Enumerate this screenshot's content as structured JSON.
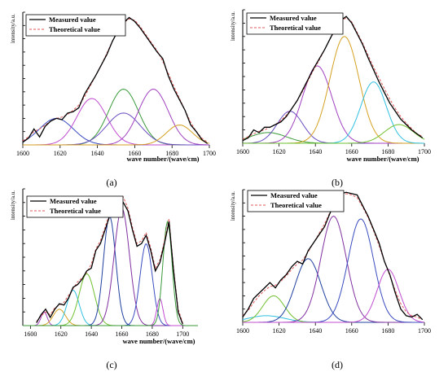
{
  "colors": {
    "measured": "#000000",
    "theoretical": "#e05a5a",
    "axis": "#000000",
    "peak_palette": [
      "#3b4cc0",
      "#c04cd0",
      "#3a9a3a",
      "#6a4cc0",
      "#a040c0",
      "#d4a020",
      "#30c0e0",
      "#70c030",
      "#2040a0",
      "#8030a0"
    ]
  },
  "chart_data": [
    {
      "panel_label": "(a)",
      "type": "line",
      "xlabel": "wave number/(wave/cm)",
      "ylabel": "intensity/a.u.",
      "xticks": [
        "1600",
        "1620",
        "1640",
        "1660",
        "1680",
        "1700"
      ],
      "xlim": [
        1600,
        1700
      ],
      "ylim": [
        0,
        1.0
      ],
      "legend": {
        "position": "top-left",
        "entries": [
          "Measured value",
          "Theoretical value"
        ]
      },
      "measured": {
        "x": [
          1600,
          1603,
          1606,
          1609,
          1612,
          1615,
          1618,
          1621,
          1624,
          1627,
          1630,
          1633,
          1636,
          1639,
          1642,
          1645,
          1648,
          1651,
          1654,
          1657,
          1660,
          1663,
          1666,
          1669,
          1672,
          1675,
          1678,
          1681,
          1684,
          1687,
          1690,
          1693,
          1696,
          1699
        ],
        "y": [
          0.02,
          0.05,
          0.12,
          0.06,
          0.14,
          0.18,
          0.2,
          0.19,
          0.24,
          0.25,
          0.28,
          0.38,
          0.45,
          0.52,
          0.6,
          0.68,
          0.78,
          0.86,
          0.92,
          0.96,
          0.93,
          0.88,
          0.82,
          0.76,
          0.7,
          0.65,
          0.52,
          0.42,
          0.34,
          0.26,
          0.15,
          0.1,
          0.04,
          0.01
        ]
      },
      "theoretical": {
        "x": [
          1600,
          1603,
          1606,
          1609,
          1612,
          1615,
          1618,
          1621,
          1624,
          1627,
          1630,
          1633,
          1636,
          1639,
          1642,
          1645,
          1648,
          1651,
          1654,
          1657,
          1660,
          1663,
          1666,
          1669,
          1672,
          1675,
          1678,
          1681,
          1684,
          1687,
          1690,
          1693,
          1696,
          1699
        ],
        "y": [
          0.03,
          0.06,
          0.1,
          0.12,
          0.15,
          0.18,
          0.2,
          0.21,
          0.23,
          0.26,
          0.3,
          0.36,
          0.44,
          0.52,
          0.6,
          0.69,
          0.78,
          0.86,
          0.92,
          0.95,
          0.94,
          0.89,
          0.83,
          0.77,
          0.71,
          0.63,
          0.54,
          0.44,
          0.35,
          0.26,
          0.17,
          0.1,
          0.05,
          0.02
        ]
      },
      "peaks": [
        {
          "center": 1618,
          "height": 0.2,
          "width": 9
        },
        {
          "center": 1637,
          "height": 0.35,
          "width": 8
        },
        {
          "center": 1654,
          "height": 0.42,
          "width": 8
        },
        {
          "center": 1654,
          "height": 0.24,
          "width": 9
        },
        {
          "center": 1670,
          "height": 0.42,
          "width": 8
        },
        {
          "center": 1684,
          "height": 0.15,
          "width": 7
        }
      ]
    },
    {
      "panel_label": "(b)",
      "type": "line",
      "xlabel": "wave number/(wave/cm)",
      "ylabel": "intensity/a.u.",
      "xticks": [
        "1600",
        "1620",
        "1640",
        "1660",
        "1680",
        "1700"
      ],
      "xlim": [
        1600,
        1700
      ],
      "ylim": [
        0,
        1.0
      ],
      "legend": {
        "position": "top-left",
        "entries": [
          "Measured value",
          "Theoretical value"
        ]
      },
      "measured": {
        "x": [
          1600,
          1603,
          1606,
          1609,
          1612,
          1615,
          1618,
          1621,
          1624,
          1627,
          1630,
          1633,
          1636,
          1639,
          1642,
          1645,
          1648,
          1651,
          1654,
          1657,
          1660,
          1663,
          1666,
          1669,
          1672,
          1675,
          1678,
          1681,
          1684,
          1687,
          1690,
          1693,
          1696,
          1699
        ],
        "y": [
          0.02,
          0.04,
          0.1,
          0.08,
          0.12,
          0.12,
          0.14,
          0.16,
          0.2,
          0.26,
          0.32,
          0.4,
          0.48,
          0.56,
          0.63,
          0.7,
          0.78,
          0.86,
          0.92,
          0.95,
          0.9,
          0.82,
          0.74,
          0.64,
          0.55,
          0.46,
          0.38,
          0.3,
          0.24,
          0.18,
          0.14,
          0.1,
          0.07,
          0.04
        ]
      },
      "theoretical": {
        "x": [
          1600,
          1603,
          1606,
          1609,
          1612,
          1615,
          1618,
          1621,
          1624,
          1627,
          1630,
          1633,
          1636,
          1639,
          1642,
          1645,
          1648,
          1651,
          1654,
          1657,
          1660,
          1663,
          1666,
          1669,
          1672,
          1675,
          1678,
          1681,
          1684,
          1687,
          1690,
          1693,
          1696,
          1699
        ],
        "y": [
          0.03,
          0.05,
          0.07,
          0.09,
          0.1,
          0.12,
          0.14,
          0.17,
          0.21,
          0.26,
          0.32,
          0.39,
          0.47,
          0.55,
          0.62,
          0.7,
          0.78,
          0.85,
          0.91,
          0.94,
          0.91,
          0.83,
          0.75,
          0.66,
          0.57,
          0.49,
          0.41,
          0.33,
          0.26,
          0.2,
          0.15,
          0.11,
          0.07,
          0.05
        ]
      },
      "peaks": [
        {
          "center": 1614,
          "height": 0.08,
          "width": 10
        },
        {
          "center": 1626,
          "height": 0.24,
          "width": 7
        },
        {
          "center": 1641,
          "height": 0.58,
          "width": 8
        },
        {
          "center": 1656,
          "height": 0.8,
          "width": 8
        },
        {
          "center": 1672,
          "height": 0.46,
          "width": 7
        },
        {
          "center": 1686,
          "height": 0.14,
          "width": 8
        }
      ]
    },
    {
      "panel_label": "(c)",
      "type": "line",
      "xlabel": "wave number/(wave/cm)",
      "ylabel": "intensity/a.u.",
      "xticks": [
        "1600",
        "1620",
        "1640",
        "1660",
        "1680",
        "1700"
      ],
      "xlim": [
        1595,
        1710
      ],
      "ylim": [
        0,
        1.0
      ],
      "legend": {
        "position": "top-left",
        "entries": [
          "Measured value",
          "Theoretical value"
        ]
      },
      "measured": {
        "x": [
          1604,
          1607,
          1610,
          1613,
          1616,
          1619,
          1622,
          1625,
          1628,
          1631,
          1634,
          1637,
          1640,
          1643,
          1646,
          1649,
          1652,
          1655,
          1658,
          1661,
          1664,
          1667,
          1670,
          1673,
          1676,
          1679,
          1682,
          1685,
          1688,
          1691,
          1694,
          1697,
          1700
        ],
        "y": [
          0.02,
          0.08,
          0.12,
          0.06,
          0.12,
          0.16,
          0.15,
          0.2,
          0.28,
          0.3,
          0.34,
          0.4,
          0.42,
          0.55,
          0.6,
          0.7,
          0.8,
          0.86,
          0.88,
          0.9,
          0.84,
          0.7,
          0.58,
          0.6,
          0.66,
          0.55,
          0.4,
          0.46,
          0.6,
          0.76,
          0.4,
          0.1,
          0.01
        ]
      },
      "theoretical": {
        "x": [
          1604,
          1607,
          1610,
          1613,
          1616,
          1619,
          1622,
          1625,
          1628,
          1631,
          1634,
          1637,
          1640,
          1643,
          1646,
          1649,
          1652,
          1655,
          1658,
          1661,
          1664,
          1667,
          1670,
          1673,
          1676,
          1679,
          1682,
          1685,
          1688,
          1691,
          1694,
          1697,
          1700
        ],
        "y": [
          0.03,
          0.07,
          0.1,
          0.08,
          0.13,
          0.15,
          0.17,
          0.22,
          0.27,
          0.32,
          0.35,
          0.39,
          0.45,
          0.56,
          0.62,
          0.72,
          0.82,
          0.88,
          0.92,
          0.94,
          0.86,
          0.72,
          0.6,
          0.62,
          0.68,
          0.57,
          0.42,
          0.48,
          0.62,
          0.78,
          0.42,
          0.12,
          0.02
        ]
      },
      "peaks": [
        {
          "center": 1609,
          "height": 0.1,
          "width": 2
        },
        {
          "center": 1619,
          "height": 0.12,
          "width": 4
        },
        {
          "center": 1628,
          "height": 0.26,
          "width": 4
        },
        {
          "center": 1637,
          "height": 0.38,
          "width": 5
        },
        {
          "center": 1652,
          "height": 0.8,
          "width": 4
        },
        {
          "center": 1660,
          "height": 0.86,
          "width": 5
        },
        {
          "center": 1676,
          "height": 0.6,
          "width": 4
        },
        {
          "center": 1685,
          "height": 0.2,
          "width": 2
        },
        {
          "center": 1690,
          "height": 0.76,
          "width": 3
        }
      ]
    },
    {
      "panel_label": "(d)",
      "type": "line",
      "xlabel": "",
      "ylabel": "intensity/a.u.",
      "xticks": [
        "1600",
        "1620",
        "1640",
        "1660",
        "1680",
        "1700"
      ],
      "xlim": [
        1600,
        1700
      ],
      "ylim": [
        0,
        1.0
      ],
      "legend": {
        "position": "top-left",
        "entries": [
          "Measured value",
          "Theoretical value"
        ]
      },
      "measured": {
        "x": [
          1600,
          1603,
          1606,
          1609,
          1612,
          1615,
          1618,
          1621,
          1624,
          1627,
          1630,
          1633,
          1636,
          1639,
          1642,
          1645,
          1648,
          1651,
          1654,
          1657,
          1660,
          1663,
          1666,
          1669,
          1672,
          1675,
          1678,
          1681,
          1684,
          1687,
          1690,
          1693,
          1696,
          1699
        ],
        "y": [
          0.04,
          0.1,
          0.18,
          0.22,
          0.26,
          0.3,
          0.26,
          0.32,
          0.36,
          0.42,
          0.46,
          0.44,
          0.54,
          0.6,
          0.66,
          0.72,
          0.82,
          0.92,
          0.97,
          0.98,
          0.97,
          0.96,
          0.88,
          0.8,
          0.7,
          0.6,
          0.46,
          0.36,
          0.22,
          0.1,
          0.05,
          0.04,
          0.06,
          0.02
        ]
      },
      "theoretical": {
        "x": [
          1600,
          1603,
          1606,
          1609,
          1612,
          1615,
          1618,
          1621,
          1624,
          1627,
          1630,
          1633,
          1636,
          1639,
          1642,
          1645,
          1648,
          1651,
          1654,
          1657,
          1660,
          1663,
          1666,
          1669,
          1672,
          1675,
          1678,
          1681,
          1684,
          1687,
          1690,
          1693,
          1696,
          1699
        ],
        "y": [
          0.05,
          0.09,
          0.15,
          0.2,
          0.24,
          0.27,
          0.28,
          0.31,
          0.35,
          0.4,
          0.44,
          0.47,
          0.53,
          0.6,
          0.67,
          0.74,
          0.83,
          0.91,
          0.95,
          0.97,
          0.96,
          0.94,
          0.87,
          0.79,
          0.69,
          0.58,
          0.46,
          0.35,
          0.24,
          0.14,
          0.08,
          0.05,
          0.04,
          0.02
        ]
      },
      "peaks": [
        {
          "center": 1613,
          "height": 0.05,
          "width": 10
        },
        {
          "center": 1617,
          "height": 0.2,
          "width": 6
        },
        {
          "center": 1636,
          "height": 0.48,
          "width": 7
        },
        {
          "center": 1650,
          "height": 0.8,
          "width": 7
        },
        {
          "center": 1665,
          "height": 0.78,
          "width": 7
        },
        {
          "center": 1680,
          "height": 0.4,
          "width": 6
        }
      ]
    }
  ]
}
